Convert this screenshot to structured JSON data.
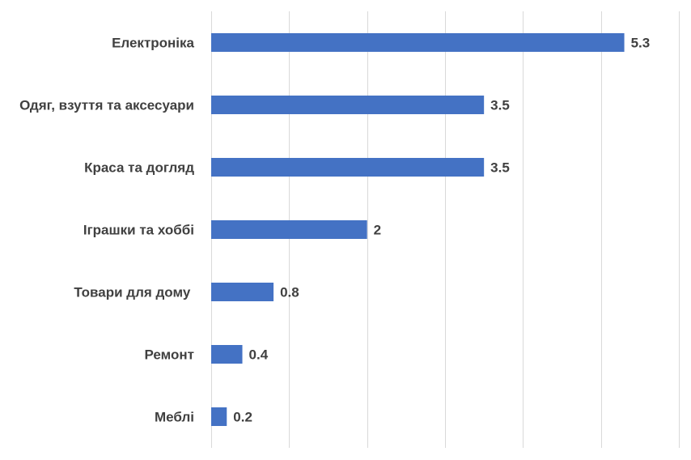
{
  "chart_data": {
    "type": "bar",
    "orientation": "horizontal",
    "categories": [
      "Електроніка",
      "Одяг, взуття та аксесуари",
      "Краса та догляд",
      "Іграшки та хоббі",
      "Товари для дому ",
      "Ремонт",
      "Меблі"
    ],
    "values": [
      5.3,
      3.5,
      3.5,
      2,
      0.8,
      0.4,
      0.2
    ],
    "value_labels": [
      "5.3",
      "3.5",
      "3.5",
      "2",
      "0.8",
      "0.4",
      "0.2"
    ],
    "xlim": [
      0,
      6
    ],
    "grid": true,
    "bar_color": "#4472C4",
    "title": "",
    "xlabel": "",
    "ylabel": "",
    "legend": "none"
  }
}
